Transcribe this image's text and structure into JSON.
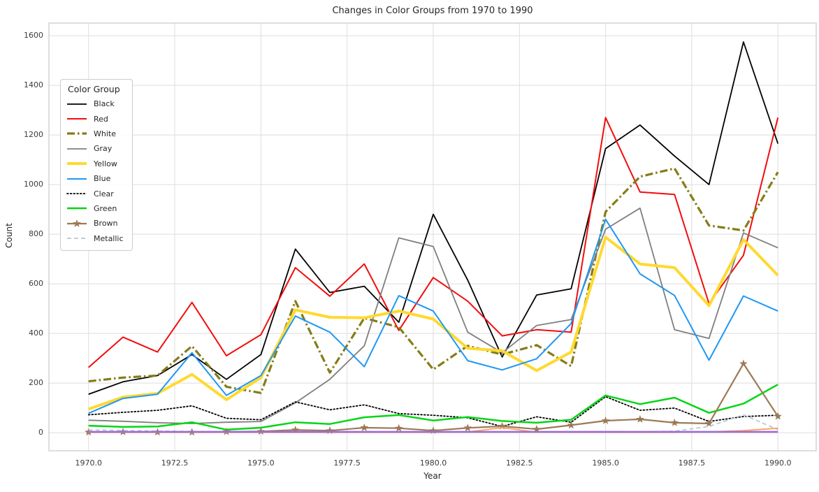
{
  "title": "Changes in Color Groups from 1970 to 1990",
  "x_axis": {
    "label": "Year"
  },
  "y_axis": {
    "label": "Count"
  },
  "legend": {
    "title": "Color Group"
  },
  "colors": {
    "grid": "#dedede",
    "spine": "#c9c9c9",
    "text": "#262626",
    "tick_text": "#3b3b3b"
  },
  "chart_data": {
    "type": "line",
    "title": "Changes in Color Groups from 1970 to 1990",
    "xlabel": "Year",
    "ylabel": "Count",
    "grid": true,
    "legend_title": "Color Group",
    "legend_position": "upper left",
    "x": [
      1970,
      1971,
      1972,
      1973,
      1974,
      1975,
      1976,
      1977,
      1978,
      1979,
      1980,
      1981,
      1982,
      1983,
      1984,
      1985,
      1986,
      1987,
      1988,
      1989,
      1990
    ],
    "xlim": [
      1968.85,
      1991.11
    ],
    "ylim": [
      -73,
      1651
    ],
    "xticks": [
      1970,
      1972.5,
      1975,
      1977.5,
      1980,
      1982.5,
      1985,
      1987.5,
      1990
    ],
    "xtick_labels": [
      "1970.0",
      "1972.5",
      "1975.0",
      "1977.5",
      "1980.0",
      "1982.5",
      "1985.0",
      "1987.5",
      "1990.0"
    ],
    "yticks": [
      0,
      200,
      400,
      600,
      800,
      1000,
      1200,
      1400,
      1600
    ],
    "ytick_labels": [
      "0",
      "200",
      "400",
      "600",
      "800",
      "1000",
      "1200",
      "1400",
      "1600"
    ],
    "series": [
      {
        "name": "Black",
        "color": "#000000",
        "style": "solid",
        "width": 1.8,
        "in_legend": true,
        "values": [
          155,
          205,
          230,
          315,
          215,
          315,
          740,
          565,
          590,
          445,
          880,
          615,
          305,
          555,
          580,
          1145,
          1240,
          1115,
          1000,
          1575,
          1165
        ]
      },
      {
        "name": "Red",
        "color": "#f20d0d",
        "style": "solid",
        "width": 2.0,
        "in_legend": true,
        "values": [
          263,
          385,
          325,
          525,
          310,
          395,
          665,
          550,
          680,
          412,
          625,
          530,
          390,
          415,
          405,
          1270,
          970,
          960,
          520,
          715,
          1270
        ]
      },
      {
        "name": "White",
        "color": "#857c17",
        "style": "dashdot",
        "width": 3.2,
        "in_legend": true,
        "values": [
          207,
          222,
          230,
          349,
          185,
          160,
          530,
          242,
          462,
          425,
          255,
          350,
          315,
          353,
          268,
          890,
          1032,
          1065,
          835,
          815,
          1050
        ]
      },
      {
        "name": "Gray",
        "color": "#7f7f7f",
        "style": "solid",
        "width": 1.8,
        "in_legend": true,
        "values": [
          50,
          46,
          40,
          37,
          42,
          45,
          120,
          215,
          350,
          785,
          750,
          405,
          322,
          432,
          456,
          820,
          905,
          415,
          380,
          805,
          745
        ]
      },
      {
        "name": "Yellow",
        "color": "#ffd92f",
        "style": "solid",
        "width": 4.0,
        "in_legend": true,
        "values": [
          95,
          143,
          158,
          235,
          133,
          222,
          495,
          465,
          463,
          490,
          458,
          340,
          330,
          250,
          325,
          788,
          680,
          665,
          512,
          778,
          634
        ]
      },
      {
        "name": "Blue",
        "color": "#1f97f4",
        "style": "solid",
        "width": 2.0,
        "in_legend": true,
        "values": [
          78,
          138,
          155,
          322,
          150,
          230,
          470,
          405,
          266,
          552,
          490,
          290,
          253,
          298,
          440,
          860,
          640,
          553,
          292,
          551,
          490
        ]
      },
      {
        "name": "Clear",
        "color": "#000000",
        "style": "dotted",
        "width": 1.8,
        "in_legend": true,
        "values": [
          72,
          82,
          90,
          108,
          58,
          52,
          124,
          92,
          112,
          77,
          70,
          60,
          25,
          64,
          42,
          145,
          90,
          99,
          45,
          65,
          70
        ]
      },
      {
        "name": "Green",
        "color": "#05d615",
        "style": "solid",
        "width": 2.5,
        "in_legend": true,
        "values": [
          28,
          23,
          25,
          42,
          12,
          20,
          42,
          35,
          62,
          71,
          49,
          63,
          47,
          40,
          52,
          150,
          115,
          141,
          80,
          117,
          194
        ]
      },
      {
        "name": "Brown",
        "color": "#9c7a55",
        "style": "solid",
        "width": 2.2,
        "marker": "star",
        "in_legend": true,
        "values": [
          2,
          3,
          2,
          2,
          4,
          5,
          11,
          8,
          20,
          18,
          8,
          19,
          26,
          14,
          30,
          48,
          54,
          40,
          37,
          278,
          66
        ]
      },
      {
        "name": "Metallic",
        "color": "#b7c6d1",
        "style": "dashed",
        "width": 1.7,
        "in_legend": true,
        "values": [
          11,
          9,
          7,
          5,
          4,
          3,
          3,
          3,
          4,
          3,
          3,
          3,
          4,
          3,
          4,
          5,
          4,
          6,
          25,
          72,
          12
        ]
      },
      {
        "name": "Orange",
        "color": "#ff9e5e",
        "style": "solid",
        "width": 1.8,
        "in_legend": false,
        "values": [
          1,
          1,
          1,
          1,
          1,
          1,
          1,
          1,
          1,
          1,
          1,
          3,
          20,
          2,
          1,
          1,
          1,
          1,
          3,
          8,
          18
        ]
      },
      {
        "name": "Purple",
        "color": "#9f6ed3",
        "style": "solid",
        "width": 2.8,
        "in_legend": false,
        "values": [
          3,
          3,
          3,
          3,
          3,
          3,
          3,
          3,
          3,
          3,
          3,
          3,
          3,
          3,
          3,
          3,
          3,
          3,
          3,
          3,
          3
        ]
      }
    ]
  }
}
